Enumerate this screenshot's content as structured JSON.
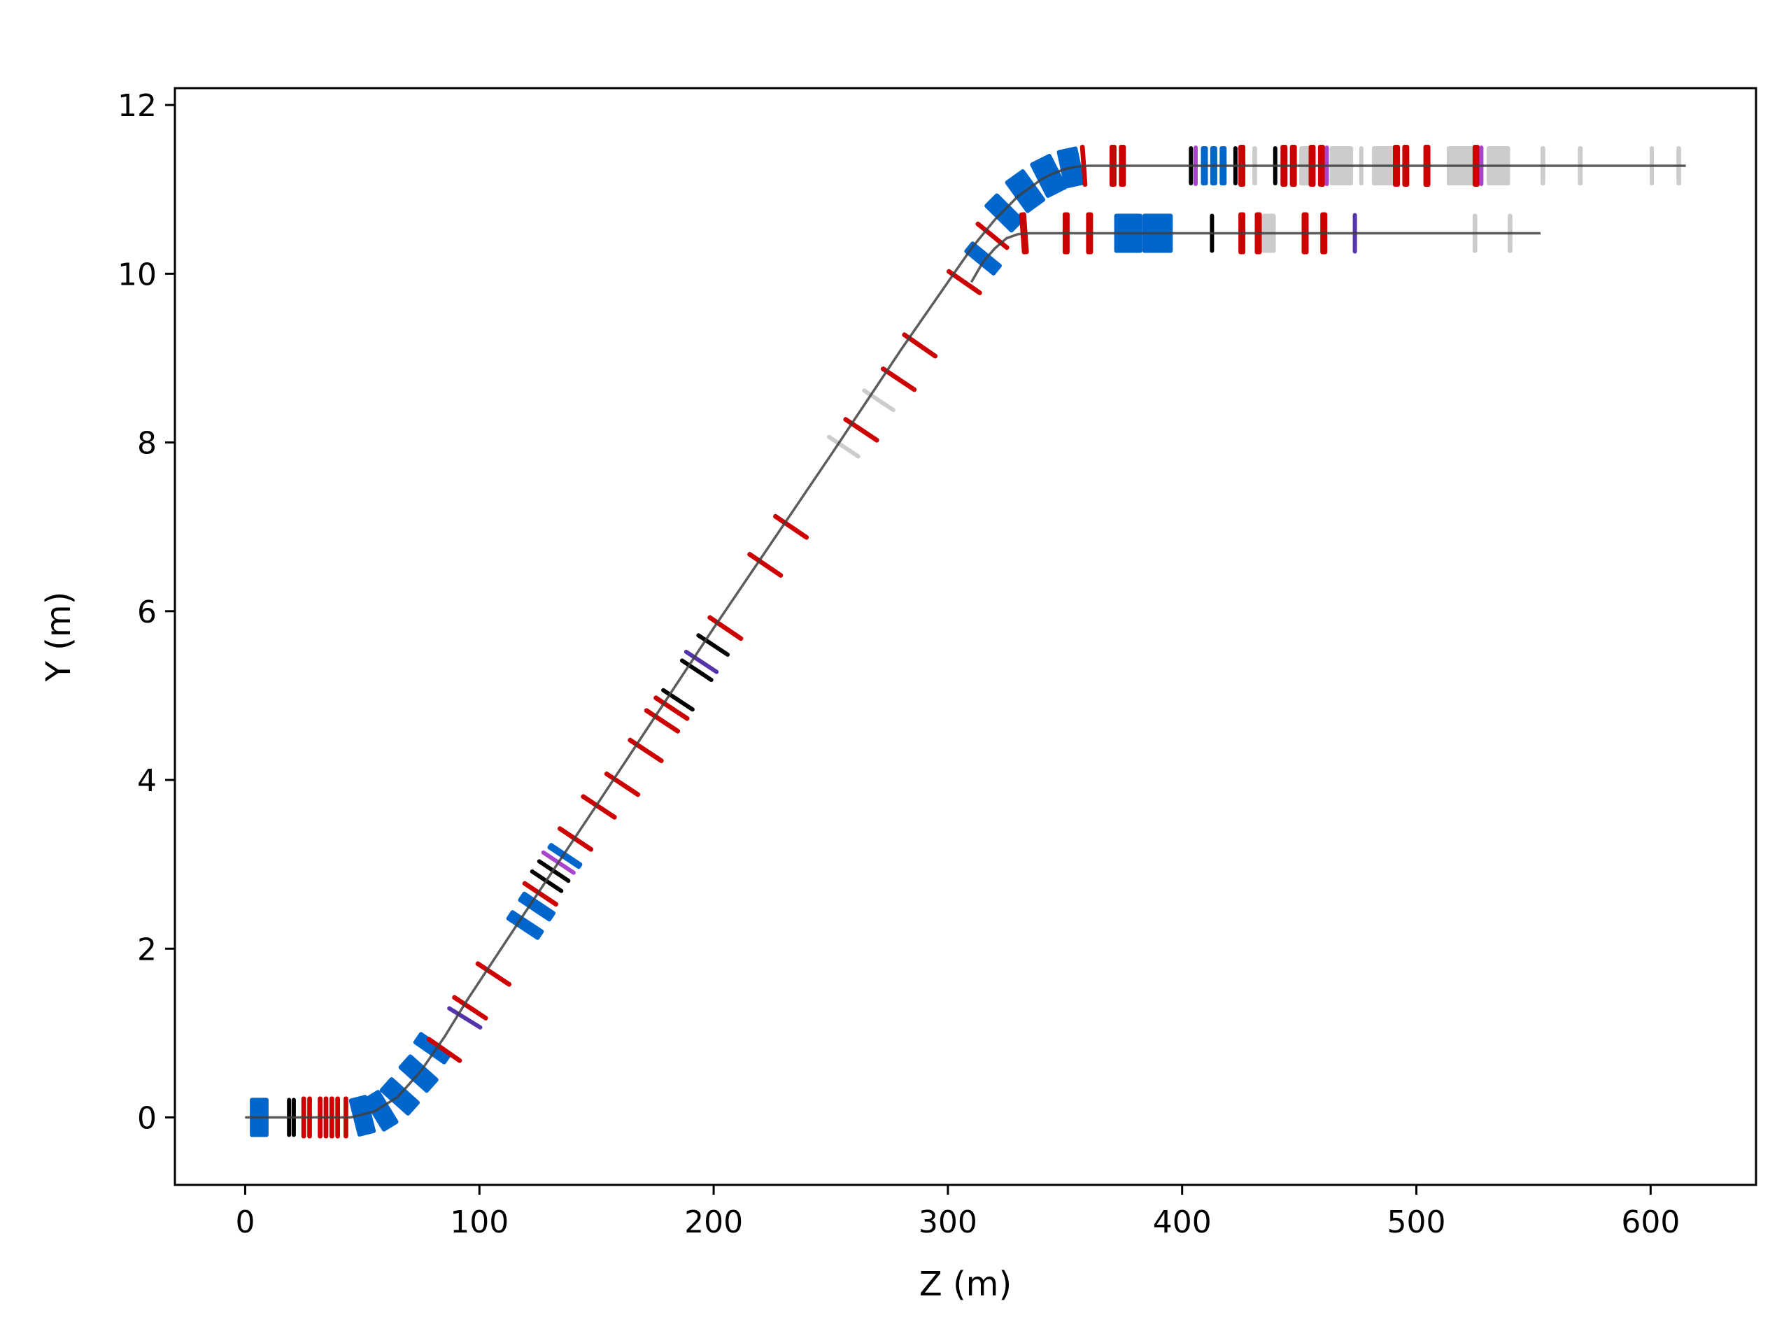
{
  "chart_data": {
    "type": "line",
    "title": "",
    "xlabel": "Z (m)",
    "ylabel": "Y (m)",
    "xlim": [
      -30,
      645
    ],
    "ylim": [
      -0.8,
      12.2
    ],
    "xticks": [
      0,
      100,
      200,
      300,
      400,
      500,
      600
    ],
    "yticks": [
      0,
      2,
      4,
      6,
      8,
      10,
      12
    ],
    "grid": false,
    "legend": "none",
    "colors": {
      "beamline": "#404040",
      "dipole": "#0066CC",
      "quadrupole": "#CC0000",
      "corrector": "#000000",
      "diagnostic": "#CCCCCC",
      "kicker": "#5533AA",
      "collimator": "#AA44CC"
    },
    "series": [
      {
        "x": [
          0,
          30,
          45,
          55,
          65,
          75,
          85,
          95,
          120,
          150,
          200,
          250,
          280,
          300,
          310,
          320,
          330,
          340,
          345,
          350,
          355,
          360,
          400,
          500,
          615
        ],
        "y": [
          0,
          0,
          0,
          0.07,
          0.24,
          0.55,
          0.95,
          1.4,
          2.45,
          3.7,
          5.8,
          7.85,
          9.1,
          9.9,
          10.3,
          10.64,
          10.92,
          11.12,
          11.19,
          11.24,
          11.27,
          11.28,
          11.28,
          11.28,
          11.28
        ]
      },
      {
        "x": [
          310,
          315,
          320,
          325,
          330,
          335,
          400,
          500,
          553
        ],
        "y": [
          9.9,
          10.14,
          10.3,
          10.42,
          10.47,
          10.48,
          10.48,
          10.48,
          10.48
        ]
      }
    ],
    "elements": [
      {
        "type": "dipole",
        "z": 2,
        "len": 8,
        "y": 0
      },
      {
        "type": "corrector",
        "z": 18,
        "len": 1.5,
        "y": 0
      },
      {
        "type": "corrector",
        "z": 20,
        "len": 1.5,
        "y": 0
      },
      {
        "type": "quadrupole",
        "z": 24,
        "len": 2,
        "y": 0
      },
      {
        "type": "quadrupole",
        "z": 26.5,
        "len": 2,
        "y": 0
      },
      {
        "type": "quadrupole",
        "z": 31,
        "len": 2,
        "y": 0
      },
      {
        "type": "quadrupole",
        "z": 33.5,
        "len": 2,
        "y": 0
      },
      {
        "type": "quadrupole",
        "z": 36,
        "len": 2,
        "y": 0
      },
      {
        "type": "quadrupole",
        "z": 38.5,
        "len": 2,
        "y": 0
      },
      {
        "type": "quadrupole",
        "z": 42,
        "len": 2,
        "y": 0
      },
      {
        "type": "dipole",
        "z": 46,
        "len": 8,
        "y": 0.02
      },
      {
        "type": "dipole",
        "z": 54,
        "len": 8,
        "y": 0.08
      },
      {
        "type": "dipole",
        "z": 62,
        "len": 8,
        "y": 0.25
      },
      {
        "type": "dipole",
        "z": 70,
        "len": 8,
        "y": 0.52
      },
      {
        "type": "dipole",
        "z": 77,
        "len": 6,
        "y": 0.82
      },
      {
        "type": "quadrupole",
        "z": 84,
        "len": 2,
        "y": 0.8
      },
      {
        "type": "kicker",
        "z": 93,
        "len": 1.5,
        "y": 1.18
      },
      {
        "type": "quadrupole",
        "z": 95,
        "len": 2,
        "y": 1.3
      },
      {
        "type": "quadrupole",
        "z": 105,
        "len": 2,
        "y": 1.7
      },
      {
        "type": "dipole",
        "z": 117,
        "len": 5,
        "y": 2.28
      },
      {
        "type": "dipole",
        "z": 122,
        "len": 5,
        "y": 2.5
      },
      {
        "type": "quadrupole",
        "z": 125,
        "len": 2,
        "y": 2.65
      },
      {
        "type": "corrector",
        "z": 128,
        "len": 1.5,
        "y": 2.8
      },
      {
        "type": "corrector",
        "z": 131,
        "len": 1.5,
        "y": 2.92
      },
      {
        "type": "collimator",
        "z": 133,
        "len": 1.5,
        "y": 3.02
      },
      {
        "type": "dipole",
        "z": 135,
        "len": 3,
        "y": 3.1
      },
      {
        "type": "quadrupole",
        "z": 140,
        "len": 2,
        "y": 3.3
      },
      {
        "type": "quadrupole",
        "z": 150,
        "len": 2,
        "y": 3.68
      },
      {
        "type": "quadrupole",
        "z": 160,
        "len": 2,
        "y": 3.95
      },
      {
        "type": "quadrupole",
        "z": 170,
        "len": 2,
        "y": 4.35
      },
      {
        "type": "quadrupole",
        "z": 177,
        "len": 2,
        "y": 4.7
      },
      {
        "type": "quadrupole",
        "z": 181,
        "len": 2,
        "y": 4.85
      },
      {
        "type": "corrector",
        "z": 184,
        "len": 1.5,
        "y": 4.95
      },
      {
        "type": "corrector",
        "z": 192,
        "len": 1.5,
        "y": 5.3
      },
      {
        "type": "kicker",
        "z": 194,
        "len": 1.5,
        "y": 5.4
      },
      {
        "type": "corrector",
        "z": 199,
        "len": 1.5,
        "y": 5.6
      },
      {
        "type": "quadrupole",
        "z": 204,
        "len": 2,
        "y": 5.8
      },
      {
        "type": "quadrupole",
        "z": 221,
        "len": 2,
        "y": 6.55
      },
      {
        "type": "quadrupole",
        "z": 232,
        "len": 2,
        "y": 7.0
      },
      {
        "type": "diagnostic",
        "z": 255,
        "len": 1,
        "y": 7.95
      },
      {
        "type": "quadrupole",
        "z": 262,
        "len": 2,
        "y": 8.15
      },
      {
        "type": "diagnostic",
        "z": 270,
        "len": 1,
        "y": 8.5
      },
      {
        "type": "quadrupole",
        "z": 278,
        "len": 2,
        "y": 8.75
      },
      {
        "type": "quadrupole",
        "z": 287,
        "len": 2,
        "y": 9.15
      },
      {
        "type": "quadrupole",
        "z": 306,
        "len": 2,
        "y": 9.9
      },
      {
        "type": "dipole",
        "z": 312,
        "len": 6,
        "y": 10.18
      },
      {
        "type": "quadrupole",
        "z": 318,
        "len": 2,
        "y": 10.45
      },
      {
        "type": "dipole",
        "z": 320,
        "len": 8,
        "y": 10.72
      },
      {
        "type": "dipole",
        "z": 328,
        "len": 10,
        "y": 10.98
      },
      {
        "type": "dipole",
        "z": 338,
        "len": 10,
        "y": 11.16
      },
      {
        "type": "dipole",
        "z": 348,
        "len": 9,
        "y": 11.26
      },
      {
        "type": "quadrupole",
        "z": 357,
        "len": 2,
        "y": 11.28
      },
      {
        "type": "quadrupole",
        "z": 369,
        "len": 3,
        "y": 11.28
      },
      {
        "type": "quadrupole",
        "z": 373,
        "len": 3,
        "y": 11.28
      },
      {
        "type": "corrector",
        "z": 403,
        "len": 1.5,
        "y": 11.28
      },
      {
        "type": "collimator",
        "z": 405,
        "len": 1.5,
        "y": 11.28
      },
      {
        "type": "dipole",
        "z": 408,
        "len": 3,
        "y": 11.28
      },
      {
        "type": "dipole",
        "z": 412,
        "len": 3,
        "y": 11.28
      },
      {
        "type": "dipole",
        "z": 416,
        "len": 3,
        "y": 11.28
      },
      {
        "type": "corrector",
        "z": 422,
        "len": 1.5,
        "y": 11.28
      },
      {
        "type": "quadrupole",
        "z": 424,
        "len": 3,
        "y": 11.28
      },
      {
        "type": "diagnostic",
        "z": 430,
        "len": 2,
        "y": 11.28
      },
      {
        "type": "corrector",
        "z": 439,
        "len": 1.5,
        "y": 11.28
      },
      {
        "type": "quadrupole",
        "z": 442,
        "len": 3,
        "y": 11.28
      },
      {
        "type": "quadrupole",
        "z": 446,
        "len": 3,
        "y": 11.28
      },
      {
        "type": "diagnostic",
        "z": 450,
        "len": 5,
        "y": 11.28
      },
      {
        "type": "quadrupole",
        "z": 454,
        "len": 3,
        "y": 11.28
      },
      {
        "type": "quadrupole",
        "z": 458,
        "len": 3,
        "y": 11.28
      },
      {
        "type": "collimator",
        "z": 461,
        "len": 1.5,
        "y": 11.28
      },
      {
        "type": "diagnostic",
        "z": 463,
        "len": 10,
        "y": 11.28
      },
      {
        "type": "diagnostic",
        "z": 476,
        "len": 1,
        "y": 11.28
      },
      {
        "type": "diagnostic",
        "z": 481,
        "len": 10,
        "y": 11.28
      },
      {
        "type": "quadrupole",
        "z": 490,
        "len": 3,
        "y": 11.28
      },
      {
        "type": "quadrupole",
        "z": 494,
        "len": 3,
        "y": 11.28
      },
      {
        "type": "quadrupole",
        "z": 503,
        "len": 3,
        "y": 11.28
      },
      {
        "type": "diagnostic",
        "z": 513,
        "len": 12,
        "y": 11.28
      },
      {
        "type": "quadrupole",
        "z": 524,
        "len": 3,
        "y": 11.28
      },
      {
        "type": "collimator",
        "z": 527,
        "len": 1.5,
        "y": 11.28
      },
      {
        "type": "diagnostic",
        "z": 530,
        "len": 10,
        "y": 11.28
      },
      {
        "type": "diagnostic",
        "z": 553,
        "len": 2,
        "y": 11.28
      },
      {
        "type": "diagnostic",
        "z": 569,
        "len": 2,
        "y": 11.28
      },
      {
        "type": "diagnostic",
        "z": 600,
        "len": 1,
        "y": 11.28
      },
      {
        "type": "diagnostic",
        "z": 611,
        "len": 2,
        "y": 11.28
      },
      {
        "type": "quadrupole",
        "z": 331,
        "len": 3,
        "y": 10.48
      },
      {
        "type": "quadrupole",
        "z": 349,
        "len": 3,
        "y": 10.48
      },
      {
        "type": "quadrupole",
        "z": 359,
        "len": 3,
        "y": 10.48
      },
      {
        "type": "dipole",
        "z": 371,
        "len": 12,
        "y": 10.48
      },
      {
        "type": "dipole",
        "z": 383,
        "len": 13,
        "y": 10.48
      },
      {
        "type": "corrector",
        "z": 412,
        "len": 1.5,
        "y": 10.48
      },
      {
        "type": "quadrupole",
        "z": 424,
        "len": 3,
        "y": 10.48
      },
      {
        "type": "quadrupole",
        "z": 431,
        "len": 3,
        "y": 10.48
      },
      {
        "type": "diagnostic",
        "z": 434,
        "len": 6,
        "y": 10.48
      },
      {
        "type": "quadrupole",
        "z": 451,
        "len": 3,
        "y": 10.48
      },
      {
        "type": "quadrupole",
        "z": 459,
        "len": 3,
        "y": 10.48
      },
      {
        "type": "kicker",
        "z": 473,
        "len": 1.5,
        "y": 10.48
      },
      {
        "type": "diagnostic",
        "z": 524,
        "len": 2,
        "y": 10.48
      },
      {
        "type": "diagnostic",
        "z": 539,
        "len": 2,
        "y": 10.48
      }
    ]
  }
}
